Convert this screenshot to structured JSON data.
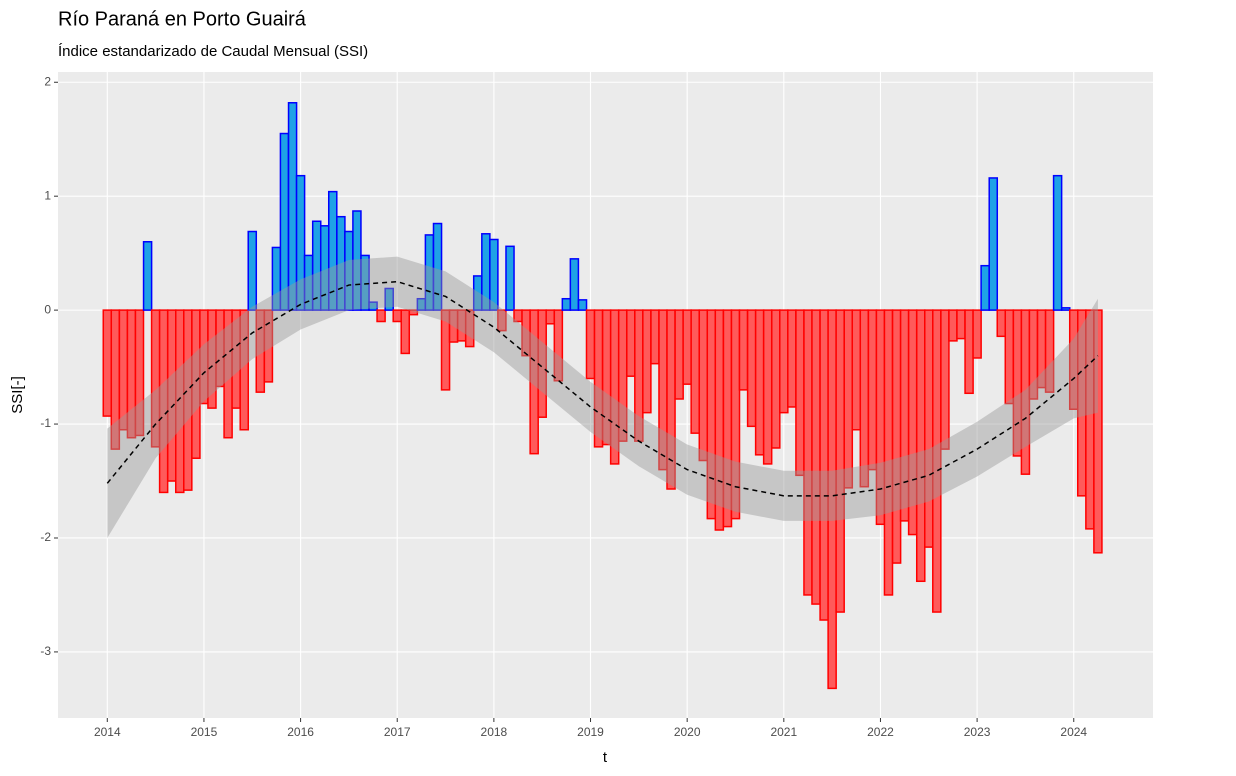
{
  "chart_data": {
    "type": "bar",
    "title": "Río Paraná en Porto Guairá",
    "subtitle": "Índice estandarizado de Caudal Mensual (SSI)",
    "x_label": "t",
    "y_label": "SSI[-]",
    "x": [
      2014,
      2014.083,
      2014.167,
      2014.25,
      2014.333,
      2014.417,
      2014.5,
      2014.583,
      2014.667,
      2014.75,
      2014.833,
      2014.917,
      2015,
      2015.083,
      2015.167,
      2015.25,
      2015.333,
      2015.417,
      2015.5,
      2015.583,
      2015.667,
      2015.75,
      2015.833,
      2015.917,
      2016,
      2016.083,
      2016.167,
      2016.25,
      2016.333,
      2016.417,
      2016.5,
      2016.583,
      2016.667,
      2016.75,
      2016.833,
      2016.917,
      2017,
      2017.083,
      2017.167,
      2017.25,
      2017.333,
      2017.417,
      2017.5,
      2017.583,
      2017.667,
      2017.75,
      2017.833,
      2017.917,
      2018,
      2018.083,
      2018.167,
      2018.25,
      2018.333,
      2018.417,
      2018.5,
      2018.583,
      2018.667,
      2018.75,
      2018.833,
      2018.917,
      2019,
      2019.083,
      2019.167,
      2019.25,
      2019.333,
      2019.417,
      2019.5,
      2019.583,
      2019.667,
      2019.75,
      2019.833,
      2019.917,
      2020,
      2020.083,
      2020.167,
      2020.25,
      2020.333,
      2020.417,
      2020.5,
      2020.583,
      2020.667,
      2020.75,
      2020.833,
      2020.917,
      2021,
      2021.083,
      2021.167,
      2021.25,
      2021.333,
      2021.417,
      2021.5,
      2021.583,
      2021.667,
      2021.75,
      2021.833,
      2021.917,
      2022,
      2022.083,
      2022.167,
      2022.25,
      2022.333,
      2022.417,
      2022.5,
      2022.583,
      2022.667,
      2022.75,
      2022.833,
      2022.917,
      2023,
      2023.083,
      2023.167,
      2023.25,
      2023.333,
      2023.417,
      2023.5,
      2023.583,
      2023.667,
      2023.75,
      2023.833,
      2023.917,
      2024,
      2024.083,
      2024.167,
      2024.25
    ],
    "values": [
      -0.93,
      -1.22,
      -1.05,
      -1.12,
      -1.1,
      0.6,
      -1.2,
      -1.6,
      -1.5,
      -1.6,
      -1.58,
      -1.3,
      -0.82,
      -0.86,
      -0.67,
      -1.12,
      -0.86,
      -1.05,
      0.69,
      -0.72,
      -0.63,
      0.55,
      1.55,
      1.82,
      1.18,
      0.48,
      0.78,
      0.74,
      1.04,
      0.82,
      0.69,
      0.87,
      0.48,
      0.07,
      -0.1,
      0.19,
      -0.1,
      -0.38,
      -0.04,
      0.1,
      0.66,
      0.76,
      -0.7,
      -0.28,
      -0.27,
      -0.32,
      0.3,
      0.67,
      0.62,
      -0.18,
      0.56,
      -0.1,
      -0.4,
      -1.26,
      -0.94,
      -0.12,
      -0.62,
      0.1,
      0.45,
      0.09,
      -0.6,
      -1.2,
      -1.18,
      -1.35,
      -1.15,
      -0.58,
      -1.15,
      -0.9,
      -0.47,
      -1.4,
      -1.57,
      -0.78,
      -0.65,
      -1.08,
      -1.32,
      -1.83,
      -1.93,
      -1.9,
      -1.83,
      -0.7,
      -1.02,
      -1.27,
      -1.35,
      -1.21,
      -0.9,
      -0.85,
      -1.45,
      -2.5,
      -2.58,
      -2.72,
      -3.32,
      -2.65,
      -1.56,
      -1.05,
      -1.55,
      -1.4,
      -1.88,
      -2.5,
      -2.22,
      -1.85,
      -1.97,
      -2.38,
      -2.08,
      -2.65,
      -1.22,
      -0.27,
      -0.25,
      -0.73,
      -0.42,
      0.39,
      1.16,
      -0.23,
      -0.82,
      -1.28,
      -1.44,
      -0.78,
      -0.68,
      -0.72,
      1.18,
      0.02,
      -0.87,
      -1.63,
      -1.92,
      -2.13
    ],
    "fill_positive": "#1fa2e6",
    "border_positive": "#0000ff",
    "fill_negative": "#ff5a5a",
    "border_negative": "#ff0000",
    "smooth": {
      "x": [
        2014,
        2014.5,
        2015,
        2015.5,
        2016,
        2016.5,
        2017,
        2017.5,
        2018,
        2018.5,
        2019,
        2019.5,
        2020,
        2020.5,
        2021,
        2021.5,
        2022,
        2022.5,
        2023,
        2023.5,
        2024,
        2024.25
      ],
      "values": [
        -1.52,
        -1.0,
        -0.55,
        -0.2,
        0.05,
        0.22,
        0.25,
        0.12,
        -0.15,
        -0.5,
        -0.85,
        -1.15,
        -1.4,
        -1.55,
        -1.63,
        -1.63,
        -1.57,
        -1.45,
        -1.22,
        -0.95,
        -0.6,
        -0.4
      ],
      "lower": [
        -2.0,
        -1.3,
        -0.8,
        -0.43,
        -0.17,
        0.0,
        0.03,
        -0.1,
        -0.37,
        -0.72,
        -1.07,
        -1.37,
        -1.62,
        -1.77,
        -1.85,
        -1.85,
        -1.8,
        -1.68,
        -1.46,
        -1.2,
        -0.95,
        -0.9
      ],
      "upper": [
        -1.04,
        -0.7,
        -0.3,
        0.03,
        0.27,
        0.44,
        0.47,
        0.34,
        0.07,
        -0.28,
        -0.63,
        -0.93,
        -1.18,
        -1.33,
        -1.41,
        -1.41,
        -1.34,
        -1.22,
        -0.98,
        -0.7,
        -0.25,
        0.1
      ],
      "line_color": "#000000",
      "band_color": "#999999"
    },
    "xlim": [
      2013.49,
      2024.82
    ],
    "ylim": [
      -3.58,
      2.09
    ],
    "xticks": [
      2014,
      2015,
      2016,
      2017,
      2018,
      2019,
      2020,
      2021,
      2022,
      2023,
      2024
    ],
    "yticks": [
      -3,
      -2,
      -1,
      0,
      1,
      2
    ],
    "grid": true
  }
}
